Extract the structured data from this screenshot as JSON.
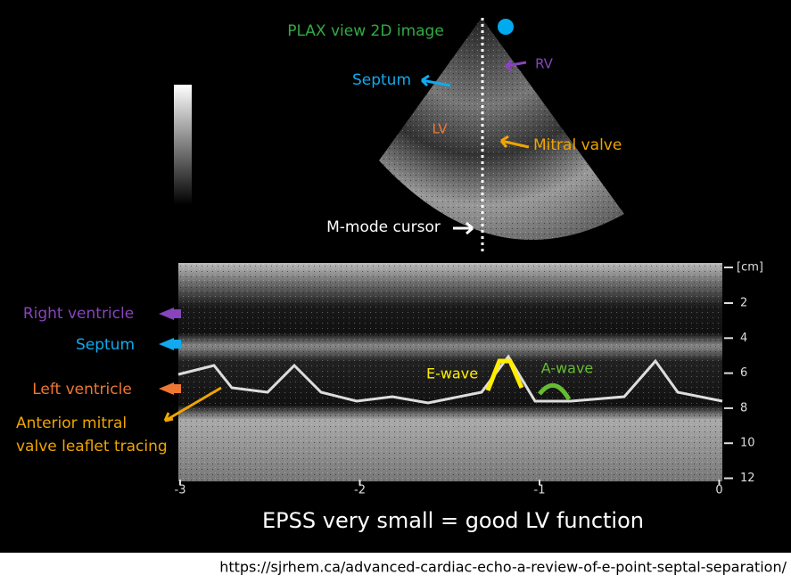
{
  "plax_title": "PLAX view 2D image",
  "plax_labels": {
    "septum": "Septum",
    "rv": "RV",
    "lv": "LV",
    "mitral_valve": "Mitral valve",
    "cursor": "M-mode cursor"
  },
  "mmode_labels": {
    "right_ventricle": "Right ventricle",
    "septum": "Septum",
    "left_ventricle": "Left ventricle",
    "leaflet": [
      "Anterior mitral",
      "valve leaflet tracing"
    ],
    "e_wave": "E-wave",
    "a_wave": "A-wave"
  },
  "depth_axis": {
    "unit": "[cm]",
    "ticks": [
      2,
      4,
      6,
      8,
      10,
      12
    ]
  },
  "time_axis": {
    "ticks": [
      -3,
      -2,
      -1,
      0
    ]
  },
  "caption": "EPSS  very small = good LV function",
  "source_url": "https://sjrhem.ca/advanced-cardiac-echo-a-review-of-e-point-septal-separation/"
}
